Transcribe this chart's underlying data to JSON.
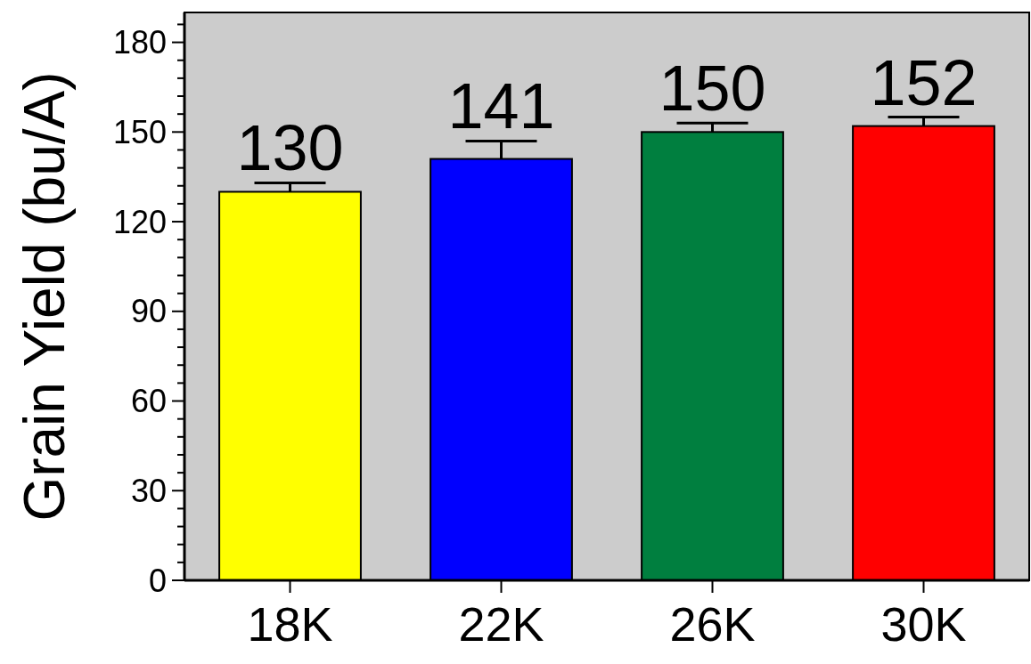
{
  "chart_data": {
    "type": "bar",
    "ylabel": "Grain Yield (bu/A)",
    "categories": [
      "18K",
      "22K",
      "26K",
      "30K"
    ],
    "values": [
      130,
      141,
      150,
      152
    ],
    "colors": [
      "#ffff00",
      "#0000ff",
      "#007f3f",
      "#ff0000"
    ],
    "errors": [
      [
        130,
        133
      ],
      [
        141,
        147
      ],
      [
        150,
        153
      ],
      [
        152,
        155
      ]
    ],
    "data_labels": true,
    "ylim": [
      0,
      190
    ],
    "yticks": [
      0,
      {
        "value": 6,
        "label": null
      },
      {
        "value": 12,
        "label": null
      },
      {
        "value": 18,
        "label": null
      },
      {
        "value": 24,
        "label": null
      },
      30,
      {
        "value": 36,
        "label": null
      },
      {
        "value": 42,
        "label": null
      },
      {
        "value": 48,
        "label": null
      },
      {
        "value": 54,
        "label": null
      },
      60,
      {
        "value": 66,
        "label": null
      },
      {
        "value": 72,
        "label": null
      },
      {
        "value": 78,
        "label": null
      },
      {
        "value": 84,
        "label": null
      },
      90,
      {
        "value": 96,
        "label": null
      },
      {
        "value": 102,
        "label": null
      },
      {
        "value": 108,
        "label": null
      },
      {
        "value": 114,
        "label": null
      },
      120,
      {
        "value": 126,
        "label": null
      },
      {
        "value": 132,
        "label": null
      },
      {
        "value": 138,
        "label": null
      },
      {
        "value": 144,
        "label": null
      },
      150,
      {
        "value": 156,
        "label": null
      },
      {
        "value": 162,
        "label": null
      },
      {
        "value": 168,
        "label": null
      },
      {
        "value": 174,
        "label": null
      },
      180,
      {
        "value": 186,
        "label": null
      }
    ],
    "grid": false
  }
}
